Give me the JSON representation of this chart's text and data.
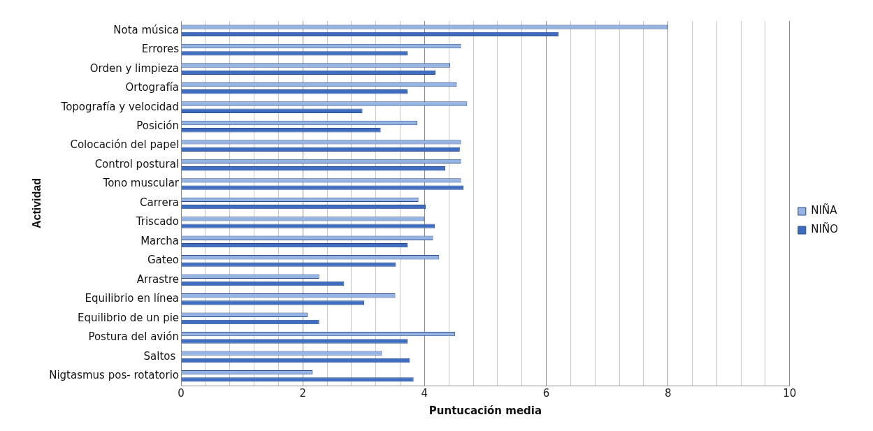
{
  "chart_data": {
    "type": "bar",
    "orientation": "horizontal",
    "xlabel": "Puntucación media",
    "ylabel": "Actividad",
    "categories": [
      "Nota música",
      "Errores",
      "Orden y limpieza",
      "Ortografía",
      "Topografía y velocidad",
      "Posición",
      "Colocación del papel",
      "Control postural",
      "Tono muscular",
      "Carrera",
      "Triscado",
      "Marcha",
      "Gateo",
      "Arrastre",
      "Equilibrio en línea",
      "Equilibrio de un pie",
      "Postura del avión",
      "Saltos ",
      "Nigtasmus pos- rotatorio"
    ],
    "series": [
      {
        "name": "NIÑA",
        "color": "#95b3e3",
        "values": [
          8.0,
          4.6,
          4.42,
          4.53,
          4.7,
          3.88,
          4.6,
          4.6,
          4.6,
          3.9,
          4.0,
          4.14,
          4.24,
          2.27,
          3.52,
          2.08,
          4.5,
          3.3,
          2.16
        ]
      },
      {
        "name": "NIÑO",
        "color": "#3d6cc0",
        "values": [
          6.2,
          3.72,
          4.18,
          3.72,
          2.98,
          3.28,
          4.58,
          4.34,
          4.64,
          4.02,
          4.17,
          3.72,
          3.53,
          2.68,
          3.01,
          2.27,
          3.72,
          3.76,
          3.82
        ]
      }
    ],
    "xlim": [
      0,
      10
    ],
    "xticks": [
      0,
      {
        "value": 0.4,
        "label": null
      },
      {
        "value": 0.8,
        "label": null
      },
      {
        "value": 1.2,
        "label": null
      },
      {
        "value": 1.6,
        "label": null
      },
      2,
      {
        "value": 2.4,
        "label": null
      },
      {
        "value": 2.8,
        "label": null
      },
      {
        "value": 3.2,
        "label": null
      },
      {
        "value": 3.6,
        "label": null
      },
      4,
      {
        "value": 4.4,
        "label": null
      },
      {
        "value": 4.8,
        "label": null
      },
      {
        "value": 5.2,
        "label": null
      },
      {
        "value": 5.6,
        "label": null
      },
      6,
      {
        "value": 6.4,
        "label": null
      },
      {
        "value": 6.8,
        "label": null
      },
      {
        "value": 7.2,
        "label": null
      },
      {
        "value": 7.6,
        "label": null
      },
      8,
      {
        "value": 8.4,
        "label": null
      },
      {
        "value": 8.8,
        "label": null
      },
      {
        "value": 9.2,
        "label": null
      },
      {
        "value": 9.6,
        "label": null
      },
      10
    ],
    "grid": "x",
    "legend": "right"
  }
}
